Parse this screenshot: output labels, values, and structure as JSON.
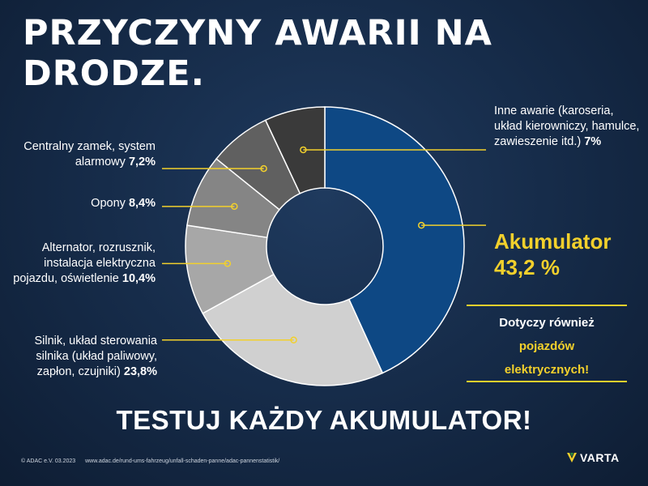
{
  "title": "PRZYCZYNY AWARII NA DRODZE.",
  "chart_data": {
    "type": "donut",
    "title": "PRZYCZYNY AWARII NA DRODZE.",
    "unit": "%",
    "slices": [
      {
        "label": "Akumulator",
        "value": 43.2,
        "value_text": "43,2 %",
        "color": "#0e4884"
      },
      {
        "label": "Silnik, układ sterowania silnika (układ paliwowy, zapłon, czujniki)",
        "value": 23.8,
        "value_text": "23,8%",
        "color": "#d0d0d0"
      },
      {
        "label": "Alternator, rozrusznik, instalacja elektryczna pojazdu, oświetlenie",
        "value": 10.4,
        "value_text": "10,4%",
        "color": "#a7a7a7"
      },
      {
        "label": "Opony",
        "value": 8.4,
        "value_text": "8,4%",
        "color": "#858585"
      },
      {
        "label": "Centralny zamek, system alarmowy",
        "value": 7.2,
        "value_text": "7,2%",
        "color": "#606060"
      },
      {
        "label": "Inne awarie (karoseria, układ kierowniczy, hamulce, zawieszenie itd.)",
        "value": 7,
        "value_text": "7%",
        "color": "#3a3a3a"
      }
    ],
    "accent_color": "#f2d02c"
  },
  "labels": {
    "akku_name": "Akumulator",
    "akku_value": "43,2 %",
    "silnik_text": "Silnik, układ sterowania silnika (układ paliwowy, zapłon, czujniki)",
    "silnik_value": "23,8%",
    "alternator_text": "Alternator, rozrusznik, instalacja elektryczna pojazdu, oświetlenie",
    "alternator_value": "10,4%",
    "opony_text": "Opony",
    "opony_value": "8,4%",
    "zamek_text": "Centralny zamek, system alarmowy",
    "zamek_value": "7,2%",
    "inne_text": "Inne awarie (karoseria, układ kierowniczy, hamulce, zawieszenie itd.)",
    "inne_value": "7%"
  },
  "box": {
    "line1": "Dotyczy również",
    "line2": "pojazdów",
    "line3": "elektrycznych!"
  },
  "cta": "TESTUJ KAŻDY AKUMULATOR!",
  "footer": {
    "copyright": "© ADAC e.V. 03.2023",
    "url": "www.adac.de/rund-ums-fahrzeug/unfall-schaden-panne/adac-pannenstatistik/"
  },
  "brand": {
    "name": "VARTA"
  }
}
